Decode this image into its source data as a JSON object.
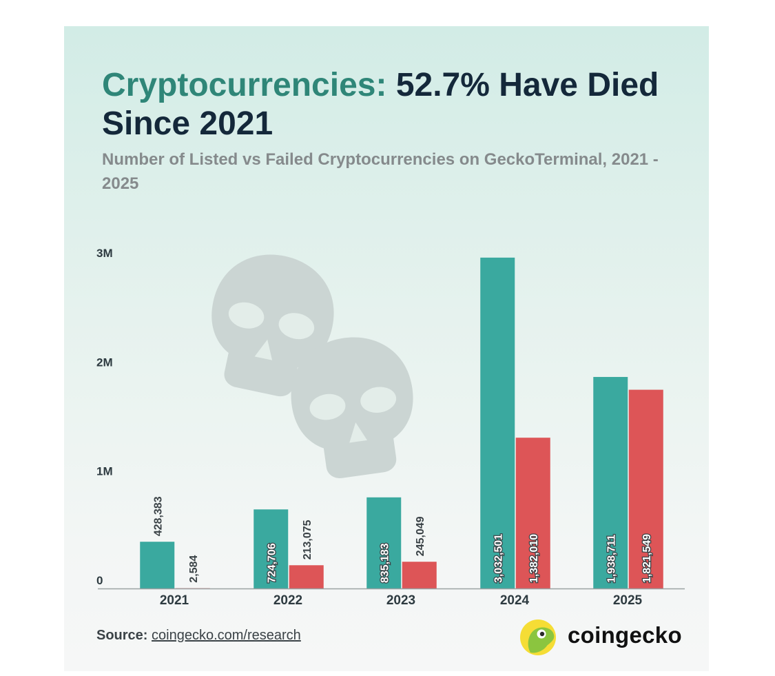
{
  "title": {
    "accent": "Cryptocurrencies:",
    "rest": "52.7% Have Died Since 2021"
  },
  "subtitle": "Number of Listed vs Failed Cryptocurrencies on GeckoTerminal, 2021 - 2025",
  "source": {
    "label": "Source:",
    "link": "coingecko.com/research"
  },
  "brand": {
    "name": "coingecko",
    "icon": "gecko-logo-icon"
  },
  "decoration": {
    "icon": "skull-icon"
  },
  "colors": {
    "listed": "#3aa99f",
    "failed": "#dd5557",
    "title_accent": "#2f8678",
    "title_dark": "#14283a",
    "subtitle": "#858a8c"
  },
  "chart_data": {
    "type": "bar",
    "categories": [
      "2021",
      "2022",
      "2023",
      "2024",
      "2025"
    ],
    "series": [
      {
        "values": [
          428383,
          724706,
          835183,
          3032501,
          1938711
        ],
        "labels": [
          "428,383",
          "724,706",
          "835,183",
          "3,032,501",
          "1,938,711"
        ]
      },
      {
        "values": [
          2584,
          213075,
          245049,
          1382010,
          1821549
        ],
        "labels": [
          "2,584",
          "213,075",
          "245,049",
          "1,382,010",
          "1,821,549"
        ]
      }
    ],
    "yticks": [
      {
        "value": 0,
        "label": "0"
      },
      {
        "value": 1000000,
        "label": "1M"
      },
      {
        "value": 2000000,
        "label": "2M"
      },
      {
        "value": 3000000,
        "label": "3M"
      }
    ],
    "ylim": [
      0,
      3000000
    ],
    "grid": false,
    "legend": "none"
  }
}
